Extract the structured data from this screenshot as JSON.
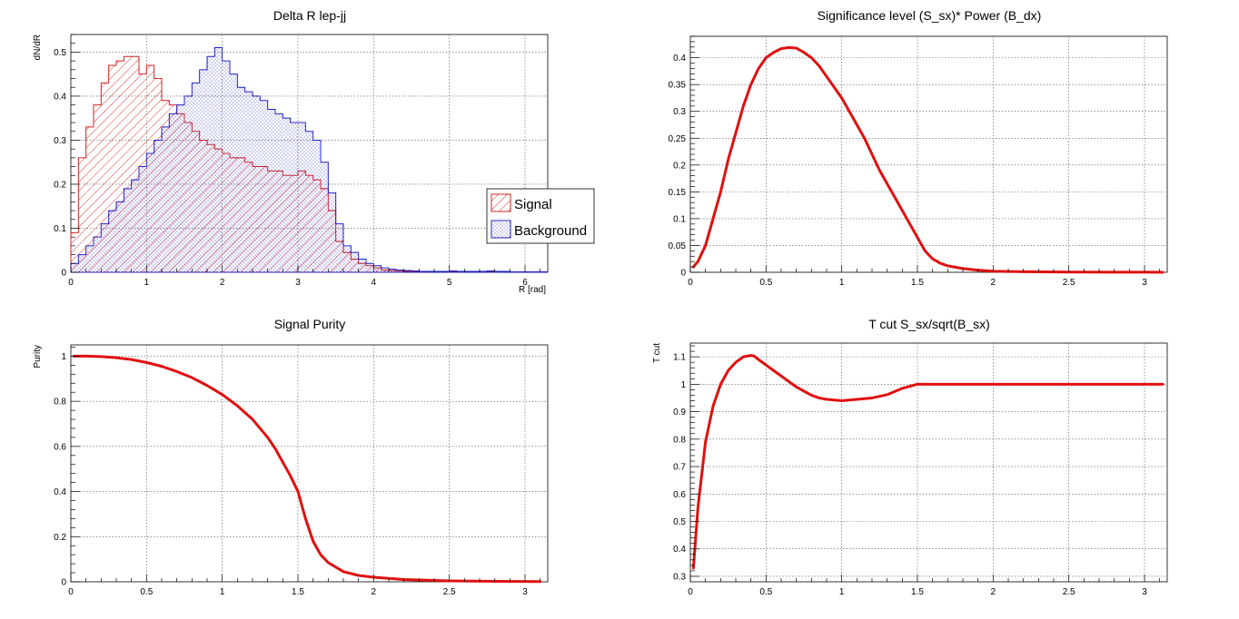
{
  "chart_data": [
    {
      "type": "histogram",
      "title": "Delta R lep-jj",
      "xlabel": "R [rad]",
      "ylabel": "dN/dR",
      "xlim": [
        0,
        6.3
      ],
      "ylim": [
        0,
        0.54
      ],
      "xticks": [
        0,
        1,
        2,
        3,
        4,
        5,
        6
      ],
      "yticks": [
        0,
        0.1,
        0.2,
        0.3,
        0.4,
        0.5
      ],
      "grid": true,
      "legend_position": "right",
      "bin_width": 0.1,
      "series": [
        {
          "name": "Signal",
          "color": "#d62020",
          "hatch": "diagonal",
          "values": [
            0.09,
            0.26,
            0.33,
            0.38,
            0.43,
            0.47,
            0.48,
            0.49,
            0.49,
            0.45,
            0.47,
            0.44,
            0.39,
            0.38,
            0.36,
            0.34,
            0.32,
            0.3,
            0.29,
            0.28,
            0.27,
            0.26,
            0.26,
            0.25,
            0.24,
            0.24,
            0.23,
            0.23,
            0.22,
            0.22,
            0.23,
            0.22,
            0.21,
            0.19,
            0.14,
            0.07,
            0.045,
            0.03,
            0.02,
            0.015,
            0.01,
            0.005,
            0.004,
            0.003,
            0.002,
            0.002,
            0.001,
            0.001,
            0.001,
            0.001,
            0.001,
            0.001,
            0.001,
            0.001,
            0.001,
            0.001,
            0.001,
            0.001,
            0.001,
            0.001,
            0.001,
            0.001,
            0.001
          ]
        },
        {
          "name": "Background",
          "color": "#2020c0",
          "hatch": "dots",
          "values": [
            0.02,
            0.04,
            0.06,
            0.08,
            0.11,
            0.14,
            0.16,
            0.19,
            0.21,
            0.24,
            0.27,
            0.3,
            0.33,
            0.36,
            0.38,
            0.4,
            0.43,
            0.46,
            0.49,
            0.51,
            0.48,
            0.45,
            0.42,
            0.41,
            0.4,
            0.39,
            0.37,
            0.36,
            0.35,
            0.34,
            0.34,
            0.32,
            0.3,
            0.25,
            0.18,
            0.11,
            0.06,
            0.045,
            0.03,
            0.02,
            0.015,
            0.01,
            0.007,
            0.005,
            0.004,
            0.003,
            0.002,
            0.002,
            0.002,
            0.002,
            0.003,
            0.002,
            0.002,
            0.002,
            0.002,
            0.003,
            0.002,
            0.002,
            0.001,
            0.001,
            0.001,
            0.001,
            0.001
          ]
        }
      ]
    },
    {
      "type": "line",
      "title": "Significance level (S_sx)* Power (B_dx)",
      "xlabel": "",
      "ylabel": "",
      "xlim": [
        0,
        3.15
      ],
      "ylim": [
        0,
        0.44
      ],
      "xticks": [
        0,
        0.5,
        1,
        1.5,
        2,
        2.5,
        3
      ],
      "yticks": [
        0,
        0.05,
        0.1,
        0.15,
        0.2,
        0.25,
        0.3,
        0.35,
        0.4
      ],
      "grid": true,
      "color": "#e01010",
      "x": [
        0.02,
        0.05,
        0.1,
        0.15,
        0.2,
        0.25,
        0.3,
        0.35,
        0.4,
        0.45,
        0.5,
        0.55,
        0.6,
        0.65,
        0.7,
        0.75,
        0.8,
        0.85,
        0.9,
        0.95,
        1.0,
        1.05,
        1.1,
        1.15,
        1.2,
        1.25,
        1.3,
        1.35,
        1.4,
        1.45,
        1.5,
        1.55,
        1.6,
        1.65,
        1.7,
        1.8,
        1.9,
        2.0,
        2.2,
        2.5,
        2.8,
        3.12
      ],
      "y": [
        0.01,
        0.02,
        0.05,
        0.1,
        0.15,
        0.21,
        0.26,
        0.31,
        0.35,
        0.38,
        0.4,
        0.41,
        0.417,
        0.419,
        0.418,
        0.41,
        0.4,
        0.385,
        0.365,
        0.345,
        0.325,
        0.3,
        0.275,
        0.25,
        0.22,
        0.19,
        0.165,
        0.14,
        0.115,
        0.09,
        0.065,
        0.04,
        0.025,
        0.017,
        0.012,
        0.007,
        0.004,
        0.002,
        0.001,
        0.0005,
        0.0002,
        0.0001
      ]
    },
    {
      "type": "line",
      "title": "Signal Purity",
      "xlabel": "",
      "ylabel": "Purity",
      "xlim": [
        0,
        3.15
      ],
      "ylim": [
        0,
        1.05
      ],
      "xticks": [
        0,
        0.5,
        1,
        1.5,
        2,
        2.5,
        3
      ],
      "yticks": [
        0,
        0.2,
        0.4,
        0.6,
        0.8,
        1
      ],
      "grid": true,
      "color": "#e01010",
      "x": [
        0.02,
        0.1,
        0.2,
        0.3,
        0.4,
        0.5,
        0.6,
        0.7,
        0.8,
        0.9,
        1.0,
        1.1,
        1.2,
        1.3,
        1.35,
        1.4,
        1.45,
        1.5,
        1.55,
        1.6,
        1.65,
        1.7,
        1.8,
        1.9,
        2.0,
        2.2,
        2.5,
        2.8,
        3.1
      ],
      "y": [
        1.0,
        1.0,
        0.998,
        0.993,
        0.985,
        0.972,
        0.955,
        0.932,
        0.905,
        0.87,
        0.83,
        0.78,
        0.72,
        0.64,
        0.59,
        0.53,
        0.47,
        0.4,
        0.28,
        0.18,
        0.12,
        0.085,
        0.045,
        0.028,
        0.02,
        0.01,
        0.004,
        0.002,
        0.001
      ]
    },
    {
      "type": "line",
      "title": "T cut S_sx/sqrt(B_sx)",
      "xlabel": "",
      "ylabel": "T cut",
      "xlim": [
        0,
        3.15
      ],
      "ylim": [
        0.28,
        1.15
      ],
      "xticks": [
        0,
        0.5,
        1,
        1.5,
        2,
        2.5,
        3
      ],
      "yticks": [
        0.3,
        0.4,
        0.5,
        0.6,
        0.7,
        0.8,
        0.9,
        1,
        1.1
      ],
      "grid": true,
      "color": "#e01010",
      "x": [
        0.02,
        0.05,
        0.1,
        0.15,
        0.2,
        0.25,
        0.3,
        0.35,
        0.4,
        0.42,
        0.45,
        0.5,
        0.55,
        0.6,
        0.65,
        0.7,
        0.75,
        0.8,
        0.85,
        0.9,
        1.0,
        1.1,
        1.2,
        1.3,
        1.4,
        1.5,
        1.55,
        1.6,
        2.0,
        2.5,
        3.0,
        3.12
      ],
      "y": [
        0.33,
        0.55,
        0.79,
        0.92,
        1.0,
        1.05,
        1.08,
        1.1,
        1.105,
        1.103,
        1.09,
        1.07,
        1.05,
        1.03,
        1.01,
        0.99,
        0.975,
        0.96,
        0.95,
        0.945,
        0.94,
        0.945,
        0.95,
        0.962,
        0.985,
        1.0,
        1.0,
        1.0,
        1.0,
        1.0,
        1.0,
        1.0
      ]
    }
  ]
}
